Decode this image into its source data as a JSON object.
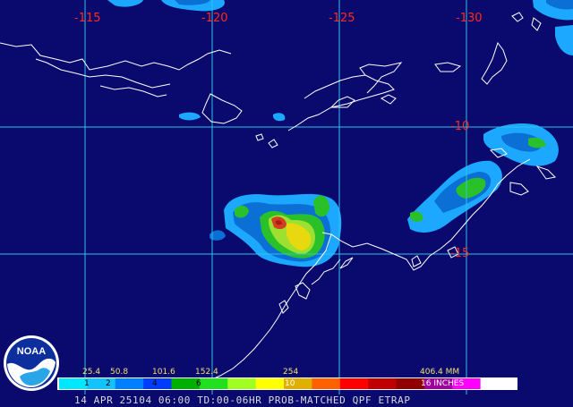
{
  "map": {
    "longitude_labels": [
      "-115",
      "-120",
      "-125",
      "-130"
    ],
    "latitude_labels": [
      "-10",
      "-15"
    ]
  },
  "legend": {
    "mm_labels": [
      "25.4",
      "50.8",
      "101.6",
      "152.4",
      "254",
      "406.4 MM"
    ],
    "inch_labels": [
      "1",
      "2",
      "4",
      "6",
      "10",
      "16 INCHES"
    ],
    "colors": [
      "#00e8ff",
      "#11c3ff",
      "#0080ff",
      "#003cff",
      "#00b000",
      "#20e020",
      "#a0ff20",
      "#ffff00",
      "#e0b000",
      "#ff6000",
      "#ff0000",
      "#c00000",
      "#900000",
      "#a000a0",
      "#ff00ff",
      "#ffffff"
    ]
  },
  "footer": {
    "text": "14 APR 25104 06:00 TD:00-06HR PROB-MATCHED QPF ETRAP"
  },
  "logo": {
    "text": "NOAA",
    "icon": "noaa-logo"
  }
}
